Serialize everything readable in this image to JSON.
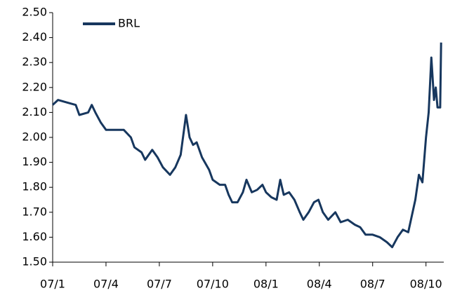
{
  "chart_data": {
    "type": "line",
    "x": [
      0,
      0.3,
      0.8,
      1.3,
      1.5,
      2.0,
      2.2,
      2.4,
      2.7,
      3.0,
      3.5,
      4.0,
      4.4,
      4.6,
      5.0,
      5.2,
      5.6,
      5.9,
      6.2,
      6.6,
      6.9,
      7.2,
      7.5,
      7.7,
      7.9,
      8.1,
      8.4,
      8.8,
      9.0,
      9.4,
      9.7,
      9.9,
      10.1,
      10.4,
      10.7,
      10.9,
      11.2,
      11.5,
      11.8,
      12.0,
      12.3,
      12.6,
      12.8,
      13.0,
      13.3,
      13.6,
      13.9,
      14.1,
      14.4,
      14.7,
      14.95,
      15.2,
      15.5,
      15.9,
      16.2,
      16.6,
      17.0,
      17.3,
      17.6,
      18.0,
      18.4,
      18.8,
      19.1,
      19.4,
      19.7,
      20.0,
      20.4,
      20.6,
      20.8,
      21.0,
      21.15,
      21.3,
      21.45,
      21.55,
      21.65,
      21.8,
      21.85
    ],
    "series": [
      {
        "name": "BRL",
        "color": "#17375e",
        "values": [
          2.13,
          2.15,
          2.14,
          2.13,
          2.09,
          2.1,
          2.13,
          2.1,
          2.06,
          2.03,
          2.03,
          2.03,
          2.0,
          1.96,
          1.94,
          1.91,
          1.95,
          1.92,
          1.88,
          1.85,
          1.88,
          1.93,
          2.09,
          2.0,
          1.97,
          1.98,
          1.92,
          1.87,
          1.83,
          1.81,
          1.81,
          1.77,
          1.74,
          1.74,
          1.78,
          1.83,
          1.78,
          1.79,
          1.81,
          1.78,
          1.76,
          1.75,
          1.83,
          1.77,
          1.78,
          1.75,
          1.7,
          1.67,
          1.7,
          1.74,
          1.75,
          1.7,
          1.67,
          1.7,
          1.66,
          1.67,
          1.65,
          1.64,
          1.61,
          1.61,
          1.6,
          1.58,
          1.56,
          1.6,
          1.63,
          1.62,
          1.75,
          1.85,
          1.82,
          2.0,
          2.1,
          2.32,
          2.15,
          2.2,
          2.12,
          2.12,
          2.38
        ]
      }
    ],
    "xlim": [
      0,
      22
    ],
    "xticks": [
      {
        "value": 0,
        "label": "07/1"
      },
      {
        "value": 3,
        "label": "07/4"
      },
      {
        "value": 6,
        "label": "07/7"
      },
      {
        "value": 9,
        "label": "07/10"
      },
      {
        "value": 12,
        "label": "08/1"
      },
      {
        "value": 15,
        "label": "08/4"
      },
      {
        "value": 18,
        "label": "08/7"
      },
      {
        "value": 21,
        "label": "08/10"
      }
    ],
    "ylim": [
      1.5,
      2.5
    ],
    "yticks": [
      {
        "value": 1.5,
        "label": "1.50"
      },
      {
        "value": 1.6,
        "label": "1.60"
      },
      {
        "value": 1.7,
        "label": "1.70"
      },
      {
        "value": 1.8,
        "label": "1.80"
      },
      {
        "value": 1.9,
        "label": "1.90"
      },
      {
        "value": 2.0,
        "label": "2.00"
      },
      {
        "value": 2.1,
        "label": "2.10"
      },
      {
        "value": 2.2,
        "label": "2.20"
      },
      {
        "value": 2.3,
        "label": "2.30"
      },
      {
        "value": 2.4,
        "label": "2.40"
      },
      {
        "value": 2.5,
        "label": "2.50"
      }
    ],
    "grid": false,
    "legend": "top-left"
  }
}
